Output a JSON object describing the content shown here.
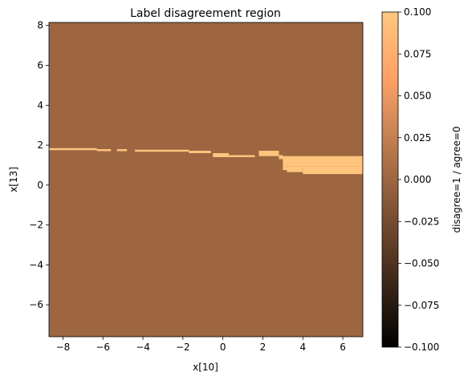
{
  "chart_data": {
    "type": "heatmap",
    "title": "Label disagreement region",
    "xlabel": "x[10]",
    "ylabel": "x[13]",
    "xlim": [
      -8.7,
      7.0
    ],
    "ylim": [
      -7.6,
      8.15
    ],
    "xticks": [
      -8,
      -6,
      -4,
      -2,
      0,
      2,
      4,
      6
    ],
    "yticks": [
      -6,
      -4,
      -2,
      0,
      2,
      4,
      6,
      8
    ],
    "background_value": 0,
    "background_color": "#9d6641",
    "disagree_color": "#ffc57d",
    "grid": false,
    "disagreement_regions": [
      {
        "x0": -8.7,
        "x1": -6.3,
        "y0": 1.75,
        "y1": 1.85
      },
      {
        "x0": -6.3,
        "x1": -5.6,
        "y0": 1.7,
        "y1": 1.8
      },
      {
        "x0": -5.3,
        "x1": -4.8,
        "y0": 1.7,
        "y1": 1.8
      },
      {
        "x0": -4.4,
        "x1": -1.7,
        "y0": 1.67,
        "y1": 1.77
      },
      {
        "x0": -1.7,
        "x1": -0.6,
        "y0": 1.6,
        "y1": 1.72
      },
      {
        "x0": -0.5,
        "x1": 0.3,
        "y0": 1.4,
        "y1": 1.6
      },
      {
        "x0": 0.3,
        "x1": 1.6,
        "y0": 1.4,
        "y1": 1.5
      },
      {
        "x0": 1.8,
        "x1": 2.8,
        "y0": 1.45,
        "y1": 1.72
      },
      {
        "x0": 2.8,
        "x1": 3.0,
        "y0": 1.3,
        "y1": 1.5
      },
      {
        "x0": 3.0,
        "x1": 7.0,
        "y0": 0.95,
        "y1": 1.45
      },
      {
        "x0": 3.0,
        "x1": 3.2,
        "y0": 0.75,
        "y1": 0.95
      },
      {
        "x0": 3.2,
        "x1": 4.0,
        "y0": 0.65,
        "y1": 0.95
      },
      {
        "x0": 4.0,
        "x1": 7.0,
        "y0": 0.55,
        "y1": 0.95
      }
    ],
    "colorbar": {
      "label": "disagree=1 / agree=0",
      "range": [
        -0.1,
        0.1
      ],
      "ticks": [
        "0.100",
        "0.075",
        "0.050",
        "0.025",
        "0.000",
        "−0.025",
        "−0.050",
        "−0.075",
        "−0.100"
      ],
      "tick_values": [
        0.1,
        0.075,
        0.05,
        0.025,
        0,
        -0.025,
        -0.05,
        -0.075,
        -0.1
      ],
      "colormap": "copper"
    }
  }
}
